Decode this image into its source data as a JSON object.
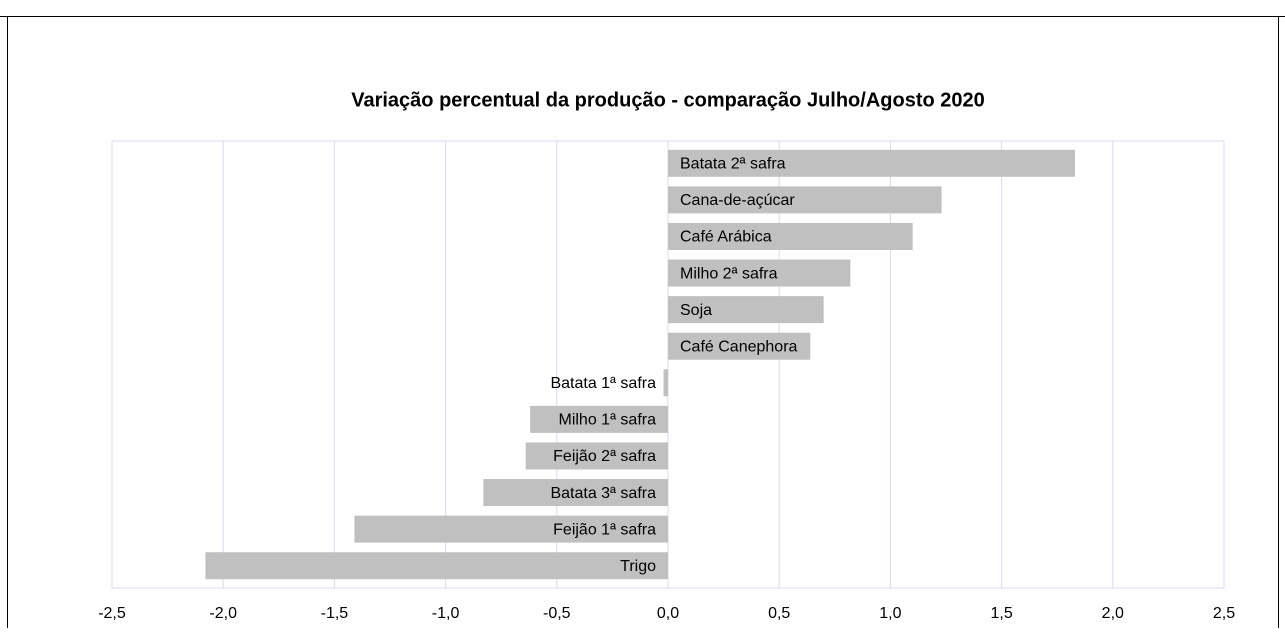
{
  "chart_data": {
    "type": "barh",
    "title": "Variação percentual da produção - comparação Julho/Agosto 2020",
    "categories": [
      "Batata 2ª safra",
      "Cana-de-açúcar",
      "Café Arábica",
      "Milho 2ª safra",
      "Soja",
      "Café Canephora",
      "Batata 1ª safra",
      "Milho 1ª safra",
      "Feijão 2ª safra",
      "Batata 3ª safra",
      "Feijão 1ª safra",
      "Trigo"
    ],
    "values": [
      1.83,
      1.23,
      1.1,
      0.82,
      0.7,
      0.64,
      -0.02,
      -0.62,
      -0.64,
      -0.83,
      -1.41,
      -2.08
    ],
    "color": "#c0c0c0",
    "xlim": [
      -2.5,
      2.5
    ],
    "xticks": [
      {
        "value": -2.5,
        "label": "-2,5"
      },
      {
        "value": -2,
        "label": "-2,0"
      },
      {
        "value": -1.5,
        "label": "-1,5"
      },
      {
        "value": -1,
        "label": "-1,0"
      },
      {
        "value": -0.5,
        "label": "-0,5"
      },
      {
        "value": 0,
        "label": "0,0"
      },
      {
        "value": 0.5,
        "label": "0,5"
      },
      {
        "value": 1,
        "label": "1,0"
      },
      {
        "value": 1.5,
        "label": "1,5"
      },
      {
        "value": 2,
        "label": "2,0"
      },
      {
        "value": 2.5,
        "label": "2,5"
      }
    ],
    "grid": true
  }
}
